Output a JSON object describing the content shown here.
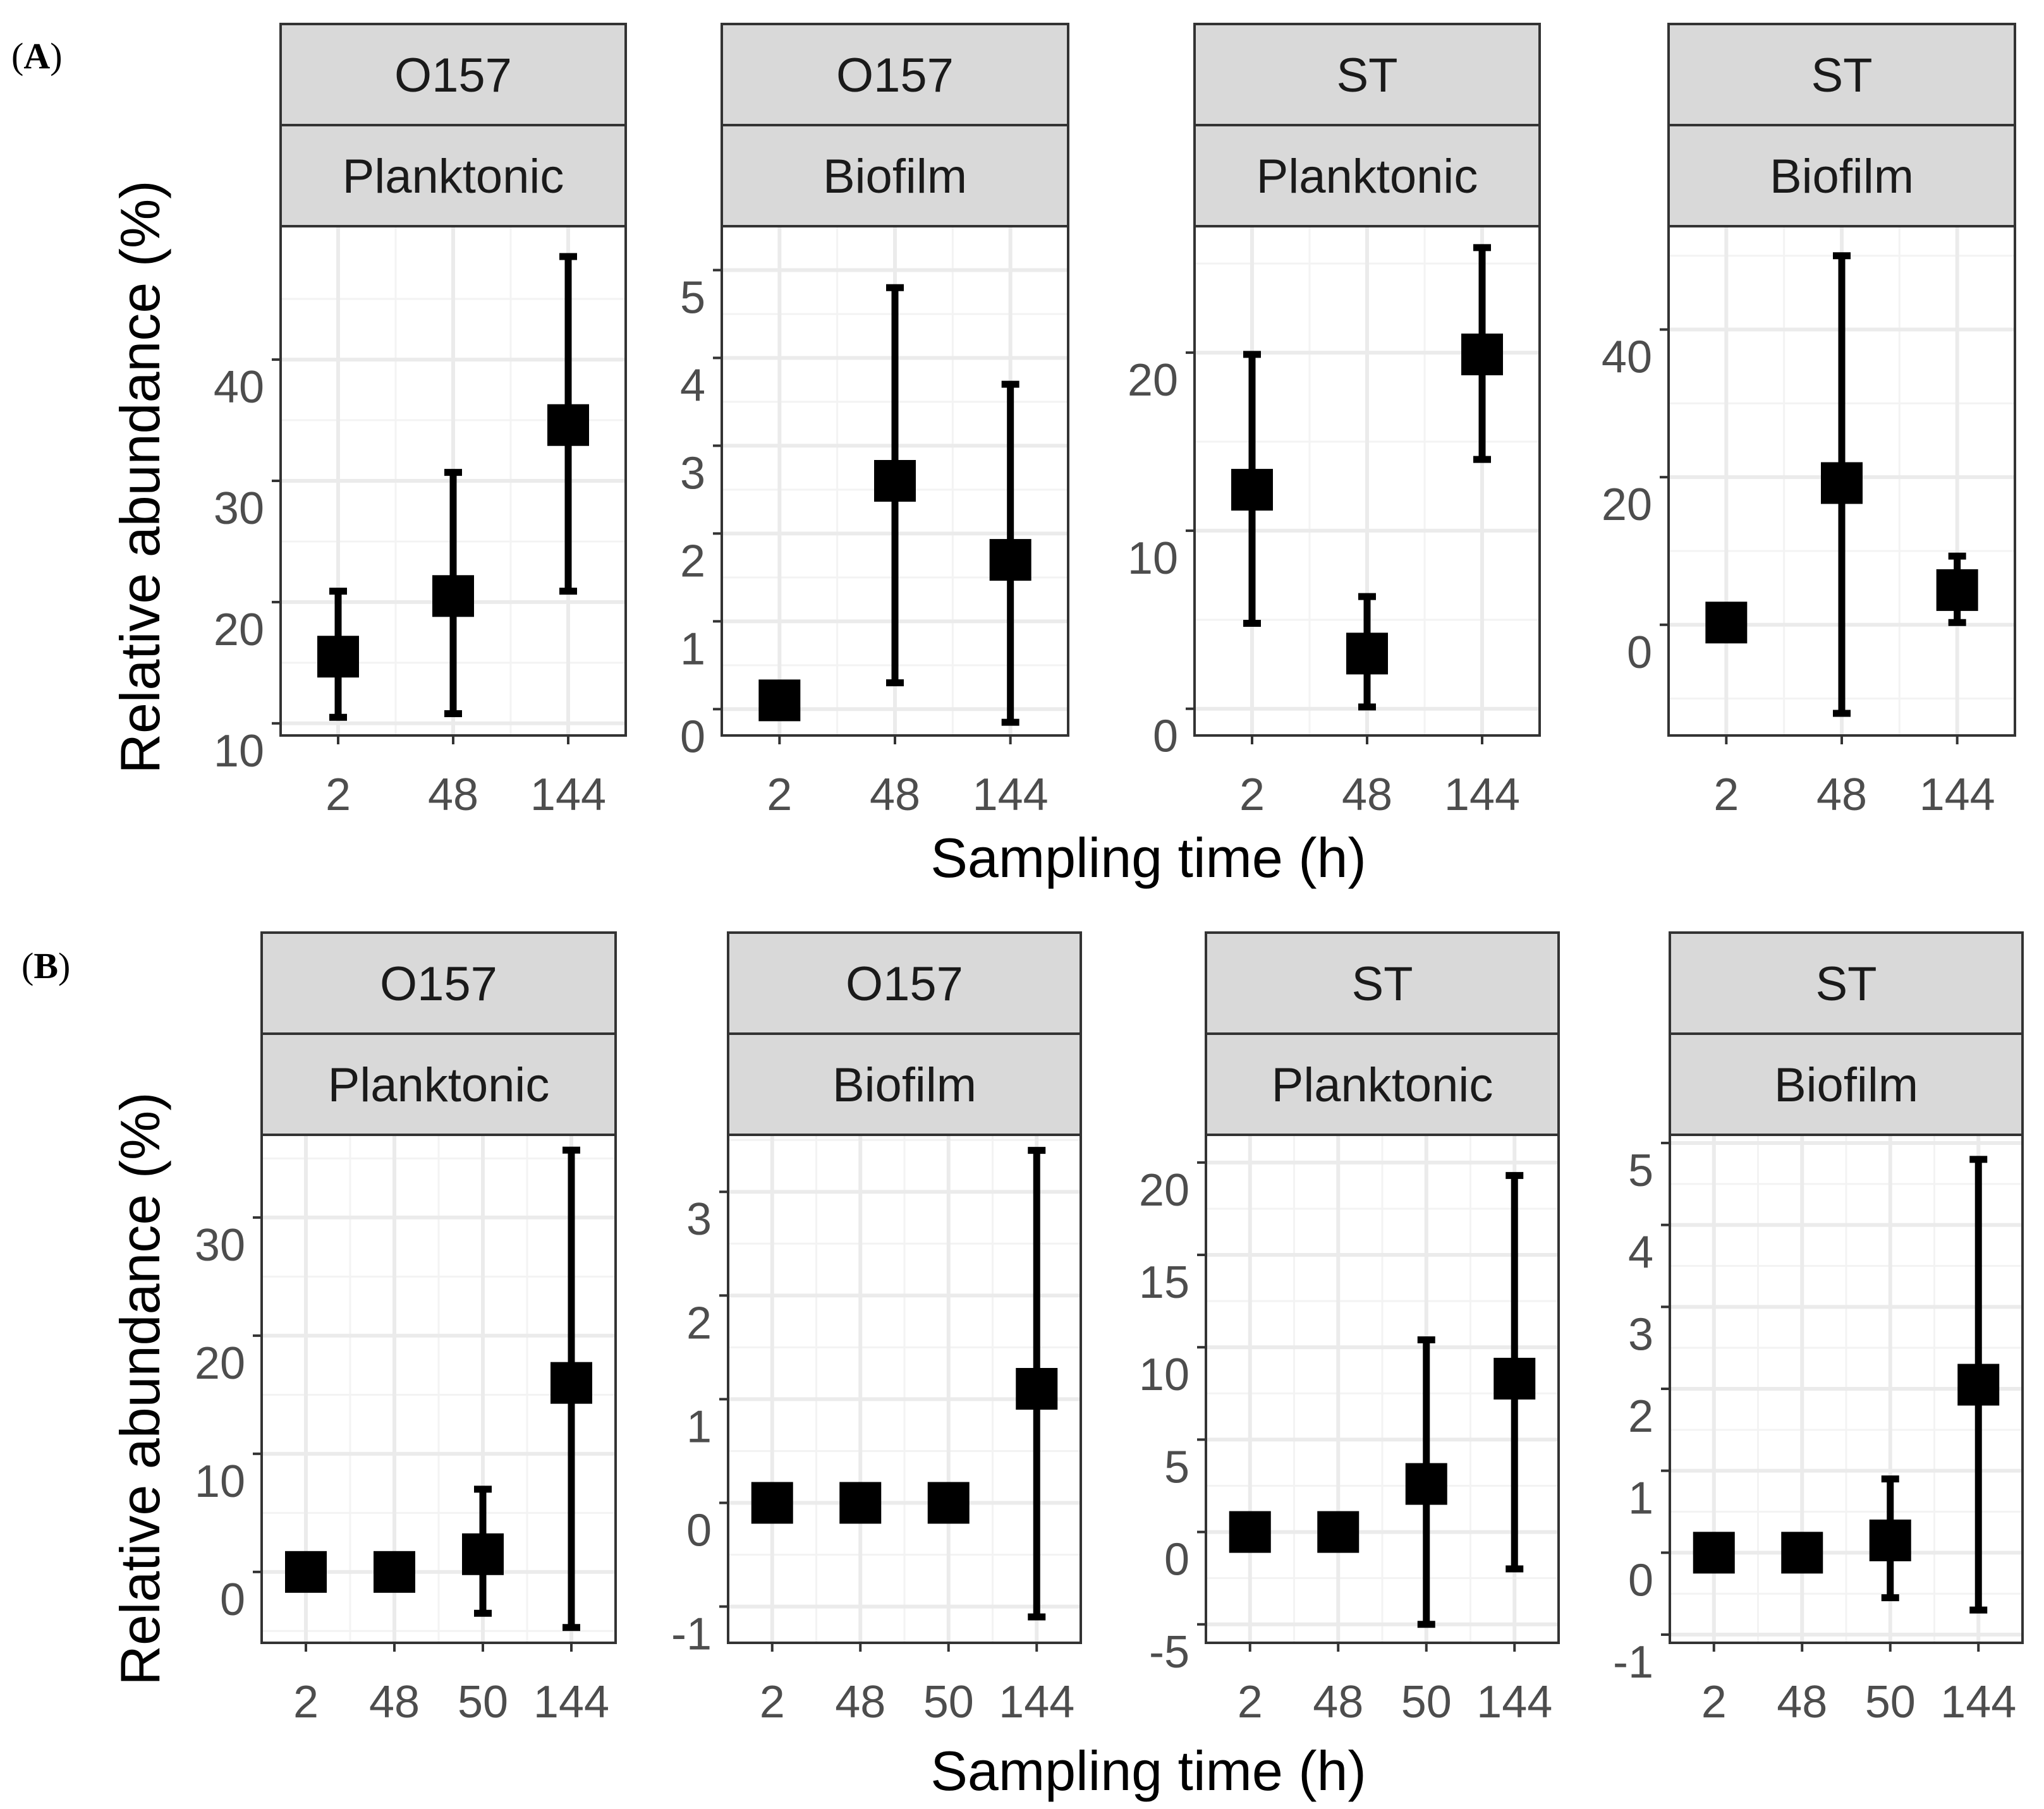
{
  "figure": {
    "panel_labels": [
      {
        "open": "(",
        "letter": "A",
        "close": ")"
      },
      {
        "open": "(",
        "letter": "B",
        "close": ")"
      }
    ]
  },
  "chart_data": [
    {
      "type": "scatter",
      "row": "A",
      "strain": "O157",
      "state": "Planktonic",
      "x_categories": [
        "2",
        "48",
        "144"
      ],
      "ylabel": "Relative abundance (%)",
      "xlabel": "Sampling time (h)",
      "ylim": [
        9,
        51
      ],
      "yticks": [
        10,
        20,
        30,
        40
      ],
      "points": [
        {
          "x": "2",
          "y": 15.5,
          "lo": 10.5,
          "hi": 20.9
        },
        {
          "x": "48",
          "y": 20.5,
          "lo": 10.8,
          "hi": 30.7
        },
        {
          "x": "144",
          "y": 34.6,
          "lo": 20.9,
          "hi": 48.5
        }
      ]
    },
    {
      "type": "scatter",
      "row": "A",
      "strain": "O157",
      "state": "Biofilm",
      "x_categories": [
        "2",
        "48",
        "144"
      ],
      "ylabel": "Relative abundance (%)",
      "xlabel": "Sampling time (h)",
      "ylim": [
        -0.3,
        5.5
      ],
      "yticks": [
        0,
        1,
        2,
        3,
        4,
        5
      ],
      "points": [
        {
          "x": "2",
          "y": 0.1,
          "lo": 0.05,
          "hi": 0.15
        },
        {
          "x": "48",
          "y": 2.6,
          "lo": 0.3,
          "hi": 4.8
        },
        {
          "x": "144",
          "y": 1.7,
          "lo": -0.15,
          "hi": 3.7
        }
      ]
    },
    {
      "type": "scatter",
      "row": "A",
      "strain": "ST",
      "state": "Planktonic",
      "x_categories": [
        "2",
        "48",
        "144"
      ],
      "ylabel": "Relative abundance (%)",
      "xlabel": "Sampling time (h)",
      "ylim": [
        -1.5,
        27.1
      ],
      "yticks": [
        0,
        10,
        20
      ],
      "points": [
        {
          "x": "2",
          "y": 12.3,
          "lo": 4.8,
          "hi": 19.9
        },
        {
          "x": "48",
          "y": 3.1,
          "lo": 0.1,
          "hi": 6.3
        },
        {
          "x": "144",
          "y": 19.9,
          "lo": 14.0,
          "hi": 25.9
        }
      ]
    },
    {
      "type": "scatter",
      "row": "A",
      "strain": "ST",
      "state": "Biofilm",
      "x_categories": [
        "2",
        "48",
        "144"
      ],
      "ylabel": "Relative abundance (%)",
      "xlabel": "Sampling time (h)",
      "ylim": [
        -15,
        54
      ],
      "yticks": [
        0,
        20,
        40
      ],
      "points": [
        {
          "x": "2",
          "y": 0.3,
          "lo": 0.0,
          "hi": 0.6
        },
        {
          "x": "48",
          "y": 19.2,
          "lo": -12.0,
          "hi": 50.0
        },
        {
          "x": "144",
          "y": 4.7,
          "lo": 0.3,
          "hi": 9.3
        }
      ]
    },
    {
      "type": "scatter",
      "row": "B",
      "strain": "O157",
      "state": "Planktonic",
      "x_categories": [
        "2",
        "48",
        "50",
        "144"
      ],
      "ylabel": "Relative abundance (%)",
      "xlabel": "Sampling time (h)",
      "ylim": [
        -6,
        37
      ],
      "yticks": [
        0,
        10,
        20,
        30
      ],
      "points": [
        {
          "x": "2",
          "y": 0.0,
          "lo": -0.3,
          "hi": 0.3
        },
        {
          "x": "48",
          "y": 0.0,
          "lo": -0.3,
          "hi": 0.3
        },
        {
          "x": "50",
          "y": 1.5,
          "lo": -3.5,
          "hi": 7.0
        },
        {
          "x": "144",
          "y": 16.0,
          "lo": -4.7,
          "hi": 35.7
        }
      ]
    },
    {
      "type": "scatter",
      "row": "B",
      "strain": "O157",
      "state": "Biofilm",
      "x_categories": [
        "2",
        "48",
        "50",
        "144"
      ],
      "ylabel": "Relative abundance (%)",
      "xlabel": "Sampling time (h)",
      "ylim": [
        -1.35,
        3.55
      ],
      "yticks": [
        -1,
        0,
        1,
        2,
        3
      ],
      "points": [
        {
          "x": "2",
          "y": 0.0,
          "lo": -0.03,
          "hi": 0.03
        },
        {
          "x": "48",
          "y": 0.0,
          "lo": -0.03,
          "hi": 0.03
        },
        {
          "x": "50",
          "y": 0.0,
          "lo": -0.03,
          "hi": 0.03
        },
        {
          "x": "144",
          "y": 1.1,
          "lo": -1.1,
          "hi": 3.4
        }
      ]
    },
    {
      "type": "scatter",
      "row": "B",
      "strain": "ST",
      "state": "Planktonic",
      "x_categories": [
        "2",
        "48",
        "50",
        "144"
      ],
      "ylabel": "Relative abundance (%)",
      "xlabel": "Sampling time (h)",
      "ylim": [
        -6,
        21.5
      ],
      "yticks": [
        -5,
        0,
        5,
        10,
        15,
        20
      ],
      "points": [
        {
          "x": "2",
          "y": 0.0,
          "lo": -0.2,
          "hi": 0.2
        },
        {
          "x": "48",
          "y": 0.0,
          "lo": -0.2,
          "hi": 0.2
        },
        {
          "x": "50",
          "y": 2.6,
          "lo": -5.0,
          "hi": 10.4
        },
        {
          "x": "144",
          "y": 8.3,
          "lo": -2.0,
          "hi": 19.3
        }
      ]
    },
    {
      "type": "scatter",
      "row": "B",
      "strain": "ST",
      "state": "Biofilm",
      "x_categories": [
        "2",
        "48",
        "50",
        "144"
      ],
      "ylabel": "Relative abundance (%)",
      "xlabel": "Sampling time (h)",
      "ylim": [
        -1.1,
        5.1
      ],
      "yticks": [
        -1,
        0,
        1,
        2,
        3,
        4,
        5
      ],
      "points": [
        {
          "x": "2",
          "y": 0.0,
          "lo": -0.03,
          "hi": 0.03
        },
        {
          "x": "48",
          "y": 0.0,
          "lo": -0.03,
          "hi": 0.03
        },
        {
          "x": "50",
          "y": 0.15,
          "lo": -0.55,
          "hi": 0.9
        },
        {
          "x": "144",
          "y": 2.05,
          "lo": -0.7,
          "hi": 4.8
        }
      ]
    }
  ]
}
